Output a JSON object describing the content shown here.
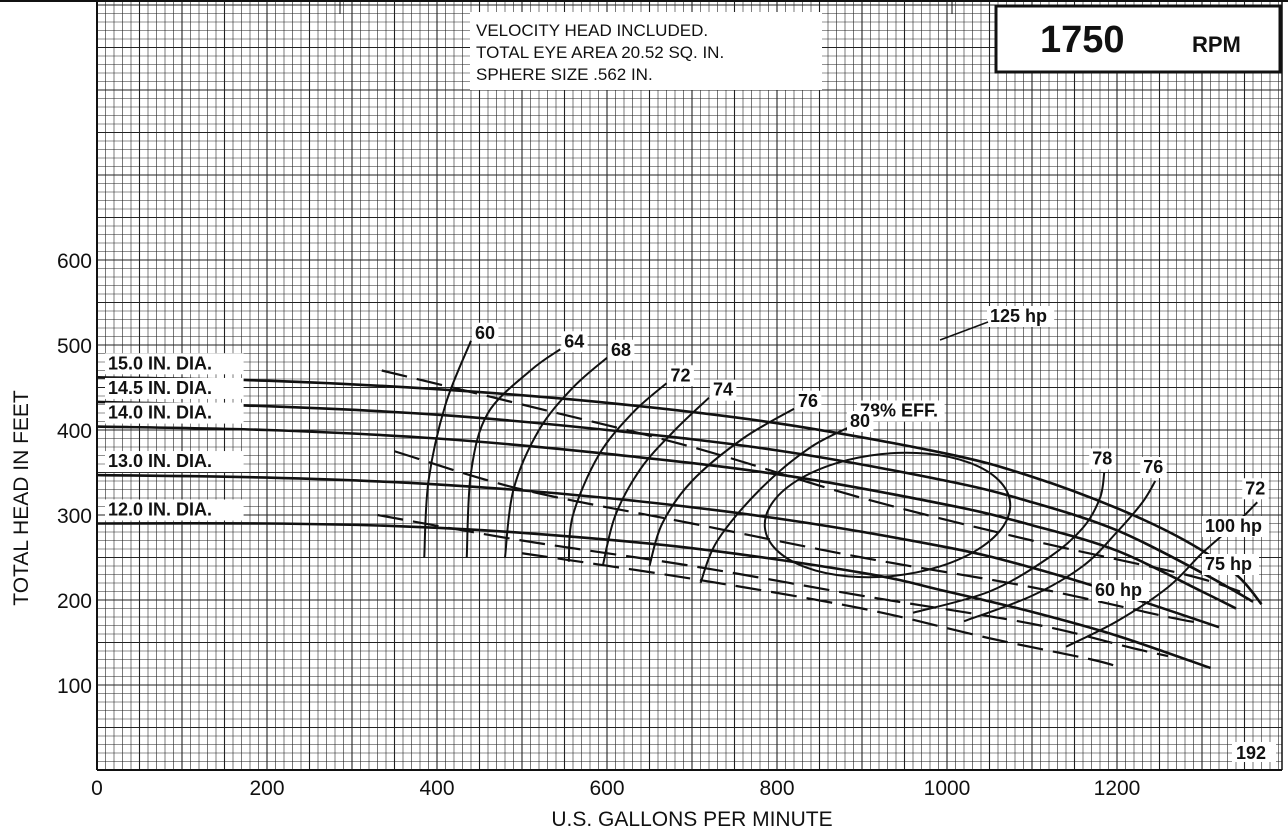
{
  "chart_data": {
    "type": "line",
    "title": "1750 RPM",
    "rpm": {
      "value": "1750",
      "unit": "RPM"
    },
    "notes": [
      "VELOCITY HEAD INCLUDED.",
      "TOTAL EYE AREA 20.52 SQ. IN.",
      "SPHERE SIZE .562 IN."
    ],
    "xlabel": "U.S. GALLONS PER MINUTE",
    "ylabel": "TOTAL HEAD IN FEET",
    "xlim": [
      0,
      1380
    ],
    "ylim": [
      0,
      700
    ],
    "xticks": [
      0,
      200,
      400,
      600,
      800,
      1000,
      1200
    ],
    "xtick_labels": [
      "0",
      "200",
      "400",
      "600",
      "800",
      "1000",
      "1200"
    ],
    "yticks": [
      100,
      200,
      300,
      400,
      500,
      600
    ],
    "ytick_labels": [
      "100",
      "200",
      "300",
      "400",
      "500",
      "600"
    ],
    "grid": true,
    "curve_number": "192",
    "head_curves": [
      {
        "name": "15.0 IN. DIA.",
        "x": [
          0,
          200,
          400,
          600,
          800,
          1000,
          1100,
          1200,
          1280,
          1340,
          1370
        ],
        "y": [
          462,
          458,
          448,
          432,
          408,
          372,
          345,
          308,
          270,
          230,
          195
        ]
      },
      {
        "name": "14.5 IN. DIA.",
        "x": [
          0,
          200,
          400,
          600,
          800,
          1000,
          1100,
          1200,
          1300,
          1360
        ],
        "y": [
          433,
          428,
          418,
          400,
          376,
          340,
          315,
          282,
          232,
          198
        ]
      },
      {
        "name": "14.0 IN. DIA.",
        "x": [
          0,
          200,
          400,
          600,
          800,
          1000,
          1100,
          1200,
          1300,
          1340
        ],
        "y": [
          404,
          400,
          390,
          372,
          348,
          312,
          288,
          258,
          210,
          190
        ]
      },
      {
        "name": "13.0 IN. DIA.",
        "x": [
          0,
          200,
          400,
          600,
          800,
          1000,
          1100,
          1200,
          1320
        ],
        "y": [
          347,
          344,
          336,
          320,
          296,
          262,
          238,
          208,
          168
        ]
      },
      {
        "name": "12.0 IN. DIA.",
        "x": [
          0,
          200,
          350,
          500,
          700,
          900,
          1000,
          1100,
          1200,
          1310
        ],
        "y": [
          290,
          290,
          287,
          279,
          261,
          232,
          210,
          186,
          158,
          120
        ]
      }
    ],
    "efficiency_curves": [
      {
        "name": "60",
        "x": [
          385,
          390,
          410,
          440
        ],
        "y": [
          250,
          340,
          430,
          505
        ]
      },
      {
        "name": "64",
        "x": [
          435,
          440,
          460,
          510,
          545
        ],
        "y": [
          250,
          350,
          420,
          470,
          495
        ]
      },
      {
        "name": "68",
        "x": [
          480,
          490,
          520,
          560,
          600
        ],
        "y": [
          250,
          330,
          400,
          450,
          485
        ]
      },
      {
        "name": "72",
        "x": [
          555,
          560,
          590,
          630,
          670
        ],
        "y": [
          245,
          300,
          370,
          420,
          455
        ]
      },
      {
        "name": "74",
        "x": [
          595,
          610,
          640,
          680,
          720
        ],
        "y": [
          240,
          300,
          355,
          400,
          438
        ]
      },
      {
        "name": "76",
        "x": [
          650,
          665,
          700,
          760,
          820
        ],
        "y": [
          240,
          290,
          340,
          390,
          425
        ]
      },
      {
        "name": "78% EFF.",
        "x": [
          710,
          730,
          780,
          840,
          900
        ],
        "y": [
          220,
          270,
          330,
          380,
          410
        ]
      },
      {
        "name": "78",
        "x": [
          960,
          1050,
          1120,
          1160,
          1180,
          1185
        ],
        "y": [
          185,
          210,
          250,
          285,
          320,
          350
        ]
      },
      {
        "name": "76",
        "x": [
          1020,
          1100,
          1160,
          1200,
          1230,
          1245
        ],
        "y": [
          175,
          205,
          240,
          280,
          315,
          340
        ]
      },
      {
        "name": "72",
        "x": [
          1140,
          1200,
          1260,
          1300,
          1340,
          1365
        ],
        "y": [
          145,
          175,
          215,
          255,
          290,
          315
        ]
      }
    ],
    "efficiency_island": {
      "name": "80",
      "cx": 930,
      "cy": 300,
      "rx": 145,
      "ry": 72
    },
    "power_curves": [
      {
        "name": "125 hp",
        "x": [
          335,
          500,
          700,
          900,
          1100,
          1280,
          1345
        ],
        "y": [
          470,
          430,
          380,
          320,
          270,
          230,
          210
        ]
      },
      {
        "name": "100 hp",
        "x": [
          350,
          500,
          700,
          900,
          1100,
          1260,
          1300
        ],
        "y": [
          375,
          330,
          290,
          250,
          215,
          180,
          173
        ]
      },
      {
        "name": "75 hp",
        "x": [
          330,
          500,
          700,
          900,
          1100,
          1220,
          1260
        ],
        "y": [
          300,
          270,
          240,
          205,
          172,
          143,
          134
        ]
      },
      {
        "name": "60 hp",
        "x": [
          500,
          700,
          900,
          1050,
          1170,
          1205
        ],
        "y": [
          255,
          225,
          190,
          155,
          130,
          120
        ]
      }
    ]
  }
}
